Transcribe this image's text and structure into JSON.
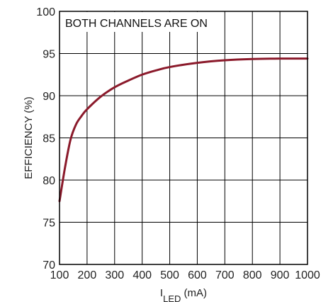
{
  "chart_data": {
    "type": "line",
    "title": "",
    "annotation": "BOTH CHANNELS ARE ON",
    "xlabel_main": "I",
    "xlabel_sub": "LED",
    "xlabel_unit": " (mA)",
    "ylabel": "EFFICIENCY (%)",
    "xlim": [
      100,
      1000
    ],
    "ylim": [
      70,
      100
    ],
    "xticks": [
      100,
      200,
      300,
      400,
      500,
      600,
      700,
      800,
      900,
      1000
    ],
    "yticks": [
      70,
      75,
      80,
      85,
      90,
      95,
      100
    ],
    "grid": true,
    "series": [
      {
        "color": "#8b1a2b",
        "x": [
          100,
          120,
          140,
          160,
          180,
          200,
          250,
          300,
          350,
          400,
          450,
          500,
          600,
          700,
          800,
          900,
          1000
        ],
        "y": [
          77.5,
          81.5,
          84.8,
          86.6,
          87.6,
          88.4,
          89.9,
          91.0,
          91.8,
          92.5,
          93.0,
          93.4,
          93.9,
          94.2,
          94.35,
          94.4,
          94.4
        ]
      }
    ]
  }
}
